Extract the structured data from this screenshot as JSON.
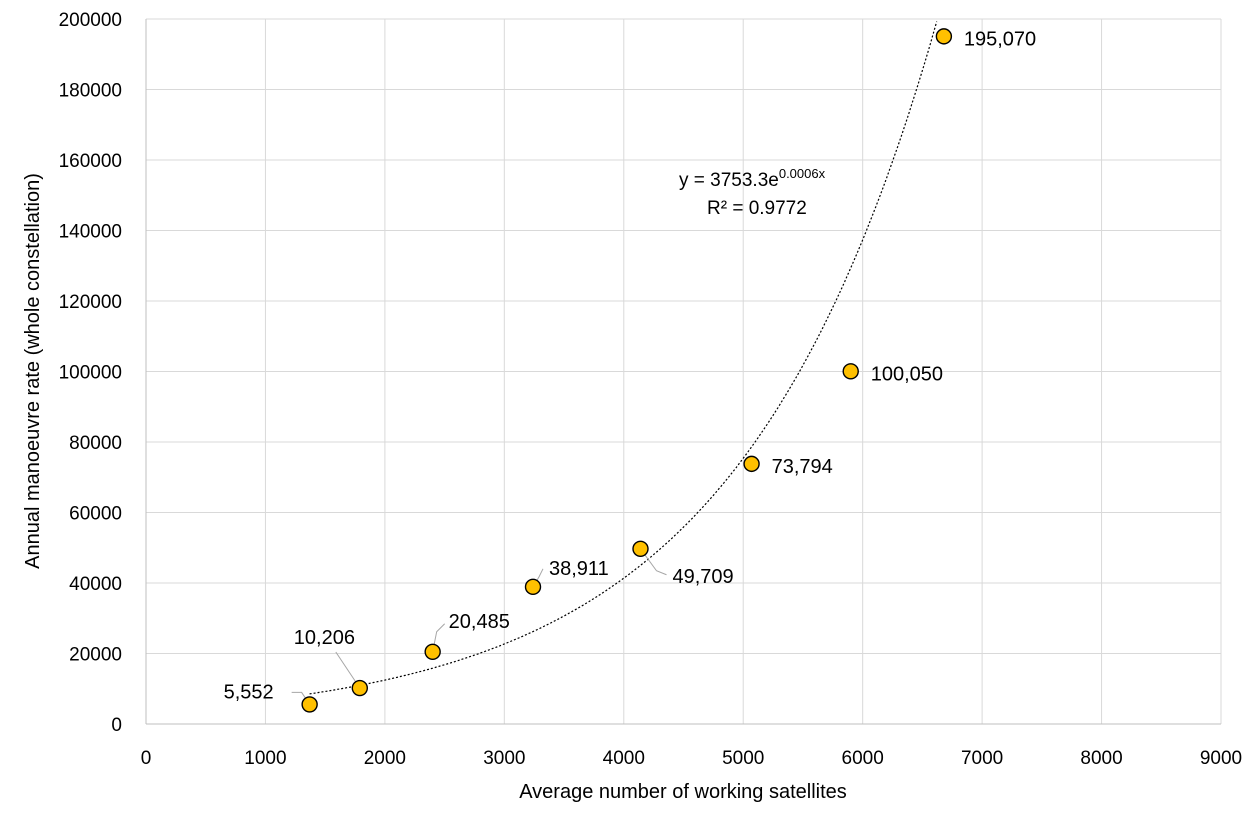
{
  "chart_data": {
    "type": "scatter",
    "xlabel": "Average number of working satellites",
    "ylabel": "Annual manoeuvre rate (whole constellation)",
    "xlim": [
      0,
      9000
    ],
    "ylim": [
      0,
      200000
    ],
    "xticks": [
      "0",
      "1000",
      "2000",
      "3000",
      "4000",
      "5000",
      "6000",
      "7000",
      "8000",
      "9000"
    ],
    "yticks": [
      "0",
      "20000",
      "40000",
      "60000",
      "80000",
      "100000",
      "120000",
      "140000",
      "160000",
      "180000",
      "200000"
    ],
    "grid": true,
    "legend": "none",
    "marker_color": "#FFC000",
    "points": [
      {
        "x": 1370,
        "y": 5552,
        "label": "5,552"
      },
      {
        "x": 1790,
        "y": 10206,
        "label": "10,206"
      },
      {
        "x": 2400,
        "y": 20485,
        "label": "20,485"
      },
      {
        "x": 3240,
        "y": 38911,
        "label": "38,911"
      },
      {
        "x": 4140,
        "y": 49709,
        "label": "49,709"
      },
      {
        "x": 5070,
        "y": 73794,
        "label": "73,794"
      },
      {
        "x": 5900,
        "y": 100050,
        "label": "100,050"
      },
      {
        "x": 6680,
        "y": 195070,
        "label": "195,070"
      }
    ],
    "trendline": {
      "type": "exponential",
      "a": 3753.3,
      "b": 0.0006,
      "x_range": [
        1370,
        6700
      ],
      "equation_prefix": "y = 3753.3e",
      "equation_exponent": "0.0006x",
      "r_squared": "R² = 0.9772"
    }
  }
}
